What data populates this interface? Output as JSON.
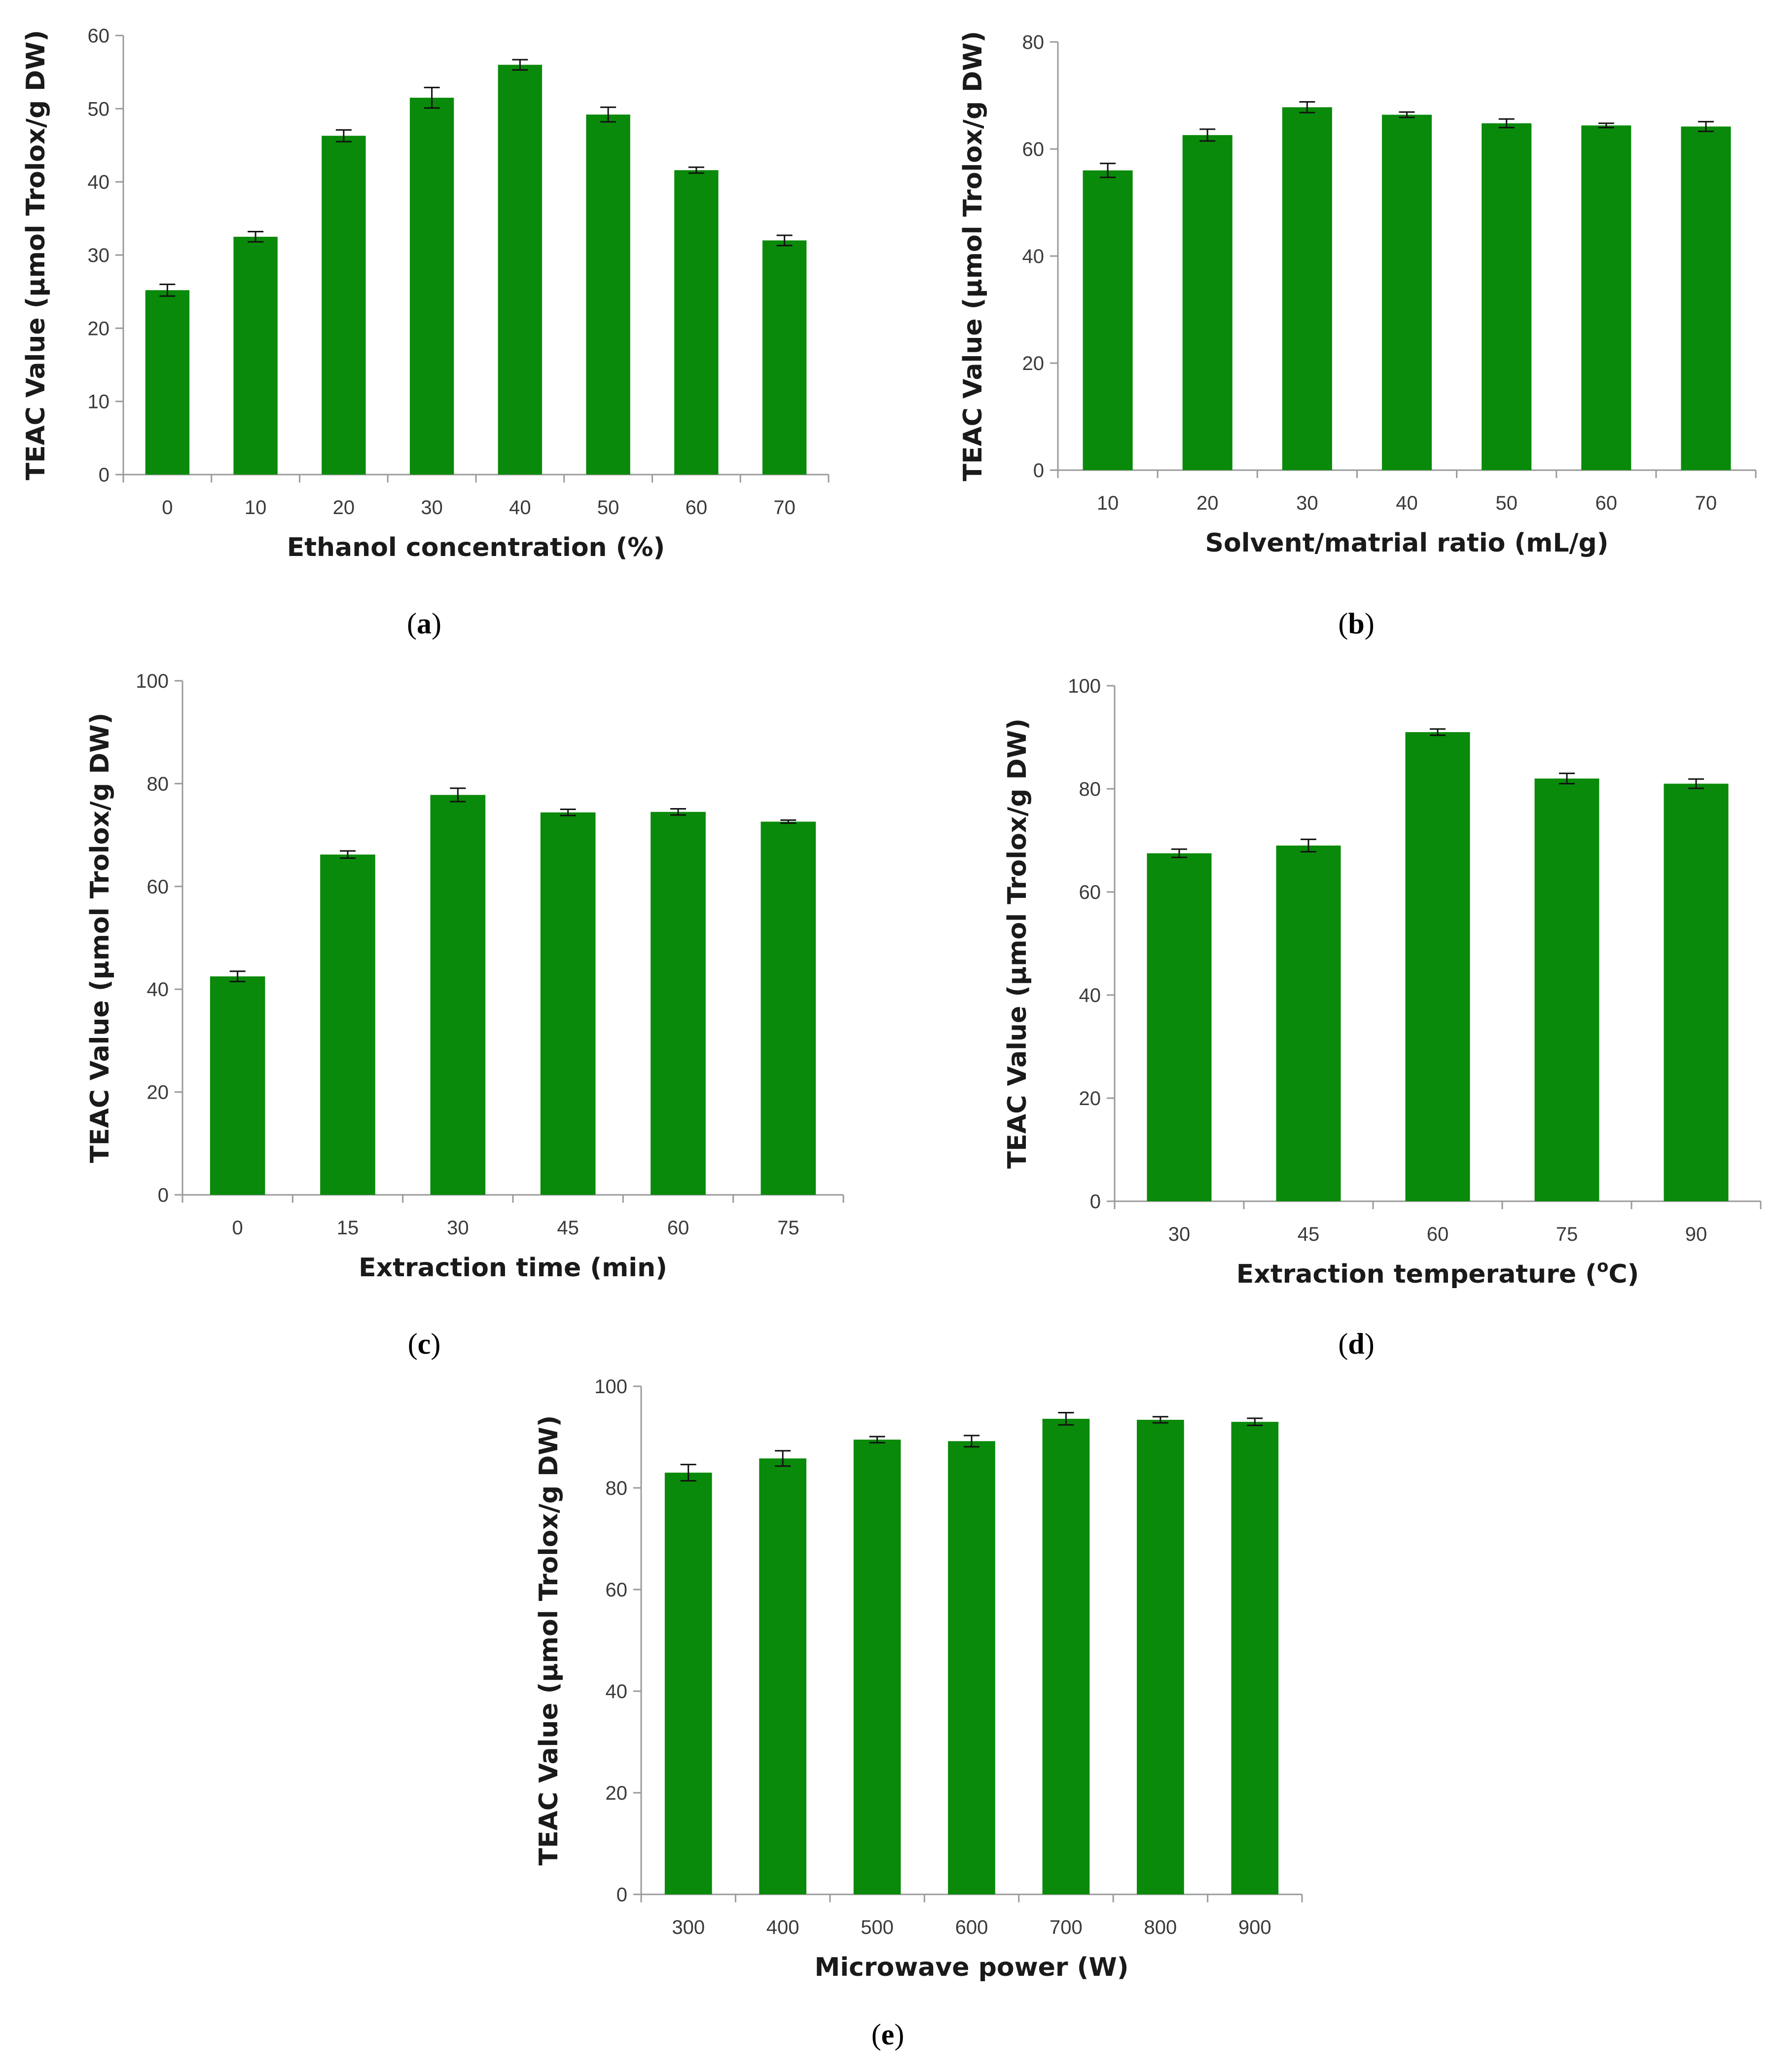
{
  "chart_data": [
    {
      "type": "bar",
      "panel": "a",
      "categories": [
        "0",
        "10",
        "20",
        "30",
        "40",
        "50",
        "60",
        "70"
      ],
      "values": [
        25.2,
        32.5,
        46.3,
        51.5,
        56.0,
        49.2,
        41.6,
        32.0
      ],
      "errors": [
        0.8,
        0.7,
        0.8,
        1.4,
        0.7,
        1.0,
        0.4,
        0.7
      ],
      "xlabel": "Ethanol concentration (%)",
      "ylabel": "TEAC Value  (μmol Trolox/g DW)",
      "ylim": [
        0,
        60
      ],
      "yticks": [
        0,
        10,
        20,
        30,
        40,
        50,
        60
      ],
      "color": "#0a8a0a"
    },
    {
      "type": "bar",
      "panel": "b",
      "categories": [
        "10",
        "20",
        "30",
        "40",
        "50",
        "60",
        "70"
      ],
      "values": [
        56.0,
        62.6,
        67.8,
        66.4,
        64.8,
        64.4,
        64.2
      ],
      "errors": [
        1.3,
        1.1,
        1.0,
        0.5,
        0.8,
        0.4,
        0.9
      ],
      "xlabel": "Solvent/matrial ratio (mL/g)",
      "ylabel": "TEAC Value  (μmol Trolox/g DW)",
      "ylim": [
        0,
        80
      ],
      "yticks": [
        0,
        20,
        40,
        60,
        80
      ],
      "color": "#0a8a0a"
    },
    {
      "type": "bar",
      "panel": "c",
      "categories": [
        "0",
        "15",
        "30",
        "45",
        "60",
        "75"
      ],
      "values": [
        42.5,
        66.2,
        77.8,
        74.4,
        74.5,
        72.6
      ],
      "errors": [
        1.0,
        0.7,
        1.3,
        0.6,
        0.6,
        0.3
      ],
      "xlabel": "Extraction time (min)",
      "ylabel": "TEAC Value  (μmol Trolox/g DW)",
      "ylim": [
        0,
        100
      ],
      "yticks": [
        0,
        20,
        40,
        60,
        80,
        100
      ],
      "color": "#0a8a0a"
    },
    {
      "type": "bar",
      "panel": "d",
      "categories": [
        "30",
        "45",
        "60",
        "75",
        "90"
      ],
      "values": [
        67.5,
        69.0,
        91.0,
        82.0,
        81.0
      ],
      "errors": [
        0.8,
        1.2,
        0.6,
        1.0,
        0.9
      ],
      "xlabel": "Extraction temperature (°C)",
      "xlabel_main": "Extraction temperature (",
      "xlabel_sup": "o",
      "xlabel_end": "C)",
      "ylabel": "TEAC Value  (μmol Trolox/g DW)",
      "ylim": [
        0,
        100
      ],
      "yticks": [
        0,
        20,
        40,
        60,
        80,
        100
      ],
      "color": "#0a8a0a"
    },
    {
      "type": "bar",
      "panel": "e",
      "categories": [
        "300",
        "400",
        "500",
        "600",
        "700",
        "800",
        "900"
      ],
      "values": [
        83.0,
        85.8,
        89.5,
        89.2,
        93.6,
        93.4,
        93.0
      ],
      "errors": [
        1.6,
        1.5,
        0.6,
        1.1,
        1.2,
        0.6,
        0.7
      ],
      "xlabel": "Microwave power (W)",
      "ylabel": "TEAC Value (μmol Trolox/g DW)",
      "ylim": [
        0,
        100
      ],
      "yticks": [
        0,
        20,
        40,
        60,
        80,
        100
      ],
      "color": "#0a8a0a"
    }
  ],
  "panel_labels": {
    "a": {
      "open": "(",
      "letter": "a",
      "close": ")"
    },
    "b": {
      "open": "(",
      "letter": "b",
      "close": ")"
    },
    "c": {
      "open": "(",
      "letter": "c",
      "close": ")"
    },
    "d": {
      "open": "(",
      "letter": "d",
      "close": ")"
    },
    "e": {
      "open": "(",
      "letter": "e",
      "close": ")"
    }
  }
}
